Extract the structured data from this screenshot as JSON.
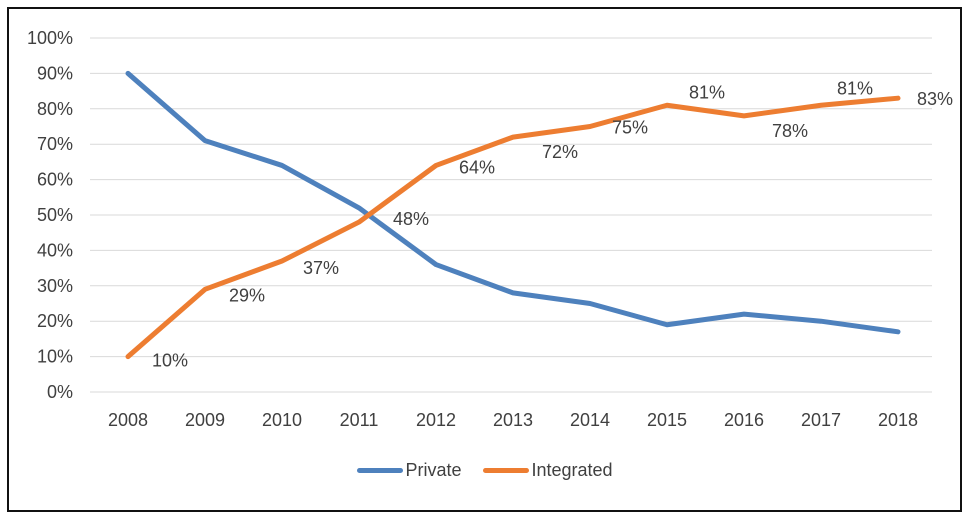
{
  "chart_data": {
    "type": "line",
    "title": "",
    "xlabel": "",
    "ylabel": "",
    "categories": [
      "2008",
      "2009",
      "2010",
      "2011",
      "2012",
      "2013",
      "2014",
      "2015",
      "2016",
      "2017",
      "2018"
    ],
    "series": [
      {
        "name": "Private",
        "color": "#4E81BD",
        "values": [
          90,
          71,
          64,
          52,
          36,
          28,
          25,
          19,
          22,
          20,
          17
        ]
      },
      {
        "name": "Integrated",
        "color": "#ED7D31",
        "values": [
          10,
          29,
          37,
          48,
          64,
          72,
          75,
          81,
          78,
          81,
          83
        ],
        "data_labels": [
          "10%",
          "29%",
          "37%",
          "48%",
          "64%",
          "72%",
          "75%",
          "81%",
          "78%",
          "81%",
          "83%"
        ],
        "label_offsets": [
          [
            42,
            4
          ],
          [
            42,
            6
          ],
          [
            39,
            7
          ],
          [
            52,
            -3
          ],
          [
            41,
            2
          ],
          [
            47,
            15
          ],
          [
            40,
            1
          ],
          [
            40,
            -13
          ],
          [
            46,
            15
          ],
          [
            34,
            -17
          ],
          [
            37,
            1
          ]
        ]
      }
    ],
    "ylim": [
      0,
      100
    ],
    "y_ticks": [
      {
        "value": 0,
        "label": "0%"
      },
      {
        "value": 10,
        "label": "10%"
      },
      {
        "value": 20,
        "label": "20%"
      },
      {
        "value": 30,
        "label": "30%"
      },
      {
        "value": 40,
        "label": "40%"
      },
      {
        "value": 50,
        "label": "50%"
      },
      {
        "value": 60,
        "label": "60%"
      },
      {
        "value": 70,
        "label": "70%"
      },
      {
        "value": 80,
        "label": "80%"
      },
      {
        "value": 90,
        "label": "90%"
      },
      {
        "value": 100,
        "label": "100%"
      }
    ],
    "grid": true,
    "grid_color": "#D9D9D9",
    "text_color": "#404040",
    "line_width": 5,
    "legend_position": "bottom"
  }
}
